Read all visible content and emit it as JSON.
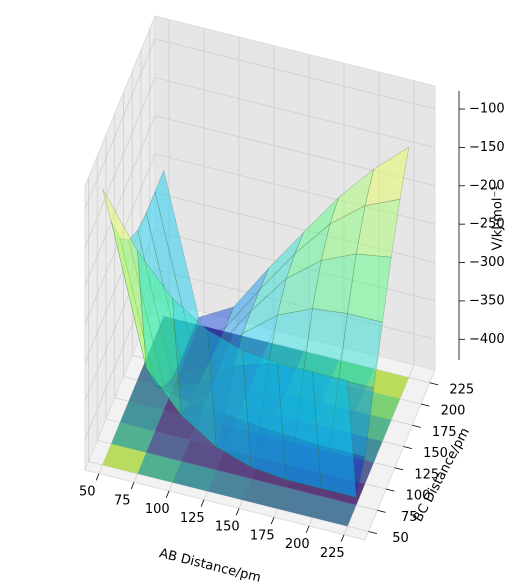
{
  "chart_data": {
    "type": "surface3d",
    "x_label": "AB Distance/pm",
    "y_label": "BC Distance/pm",
    "z_label": "V/kJ·mol⁻¹",
    "x": [
      50,
      75,
      100,
      125,
      150,
      175,
      200,
      225
    ],
    "y": [
      50,
      75,
      100,
      125,
      150,
      175,
      200,
      225
    ],
    "z": [
      [
        -80,
        -150,
        -200,
        -230,
        -245,
        -250,
        -250,
        -250
      ],
      [
        -150,
        -330,
        -380,
        -410,
        -425,
        -430,
        -430,
        -430
      ],
      [
        -200,
        -380,
        -392,
        -395,
        -400,
        -403,
        -405,
        -405
      ],
      [
        -230,
        -410,
        -395,
        -360,
        -345,
        -343,
        -343,
        -343
      ],
      [
        -245,
        -425,
        -400,
        -345,
        -310,
        -290,
        -285,
        -285
      ],
      [
        -250,
        -430,
        -403,
        -343,
        -290,
        -255,
        -235,
        -228
      ],
      [
        -250,
        -430,
        -405,
        -343,
        -285,
        -235,
        -200,
        -180
      ],
      [
        -250,
        -430,
        -405,
        -343,
        -285,
        -228,
        -180,
        -140
      ]
    ],
    "xlim": [
      40,
      240
    ],
    "ylim": [
      40,
      240
    ],
    "zlim": [
      -440,
      -70
    ],
    "xticks": [
      50,
      75,
      100,
      125,
      150,
      175,
      200,
      225
    ],
    "yticks": [
      50,
      75,
      100,
      125,
      150,
      175,
      200,
      225
    ],
    "zticks": [
      {
        "value": -100,
        "label": "−100"
      },
      {
        "value": -150,
        "label": "−150"
      },
      {
        "value": -200,
        "label": "−200"
      },
      {
        "value": -250,
        "label": "−250"
      },
      {
        "value": -300,
        "label": "−300"
      },
      {
        "value": -350,
        "label": "−350"
      },
      {
        "value": -400,
        "label": "−400"
      }
    ],
    "grid": true
  }
}
